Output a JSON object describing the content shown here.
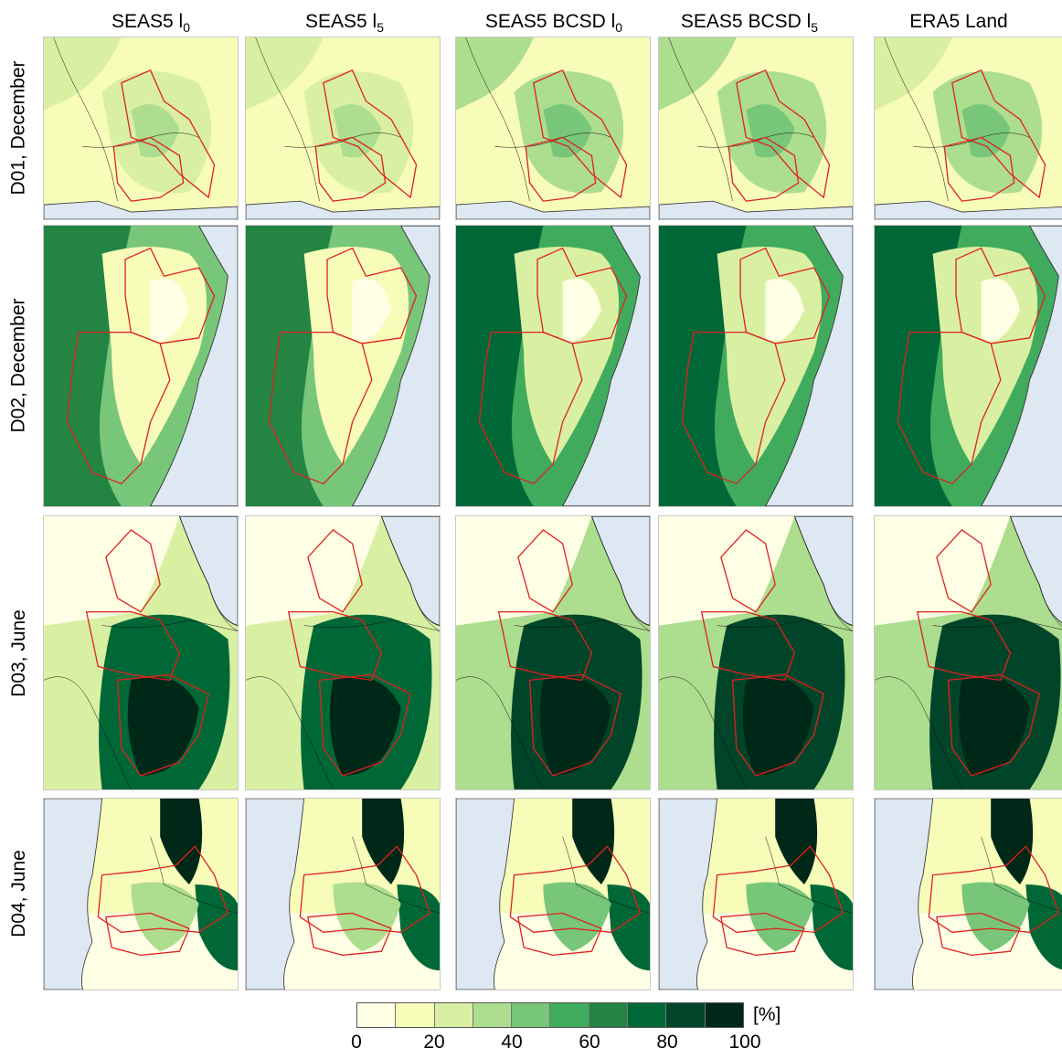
{
  "columns": [
    {
      "main": "SEAS5 l",
      "sub": "0"
    },
    {
      "main": "SEAS5 l",
      "sub": "5"
    },
    {
      "main": "SEAS5 BCSD l",
      "sub": "0"
    },
    {
      "main": "SEAS5 BCSD l",
      "sub": "5"
    },
    {
      "main": "ERA5 Land",
      "sub": ""
    }
  ],
  "rows": [
    {
      "label": "D01, December"
    },
    {
      "label": "D02, December"
    },
    {
      "label": "D03, June"
    },
    {
      "label": "D04, June"
    }
  ],
  "colorbar": {
    "unit": "[%]",
    "ticks": [
      "0",
      "20",
      "40",
      "60",
      "80",
      "100"
    ],
    "colors": [
      "#ffffe5",
      "#f7fcb9",
      "#d9f0a3",
      "#addd8e",
      "#78c679",
      "#41ab5d",
      "#238443",
      "#006837",
      "#004529",
      "#002818"
    ]
  },
  "map_colors": {
    "ocean": "#dde8f3",
    "basin_outline": "#e02020",
    "border_line": "#111111"
  }
}
